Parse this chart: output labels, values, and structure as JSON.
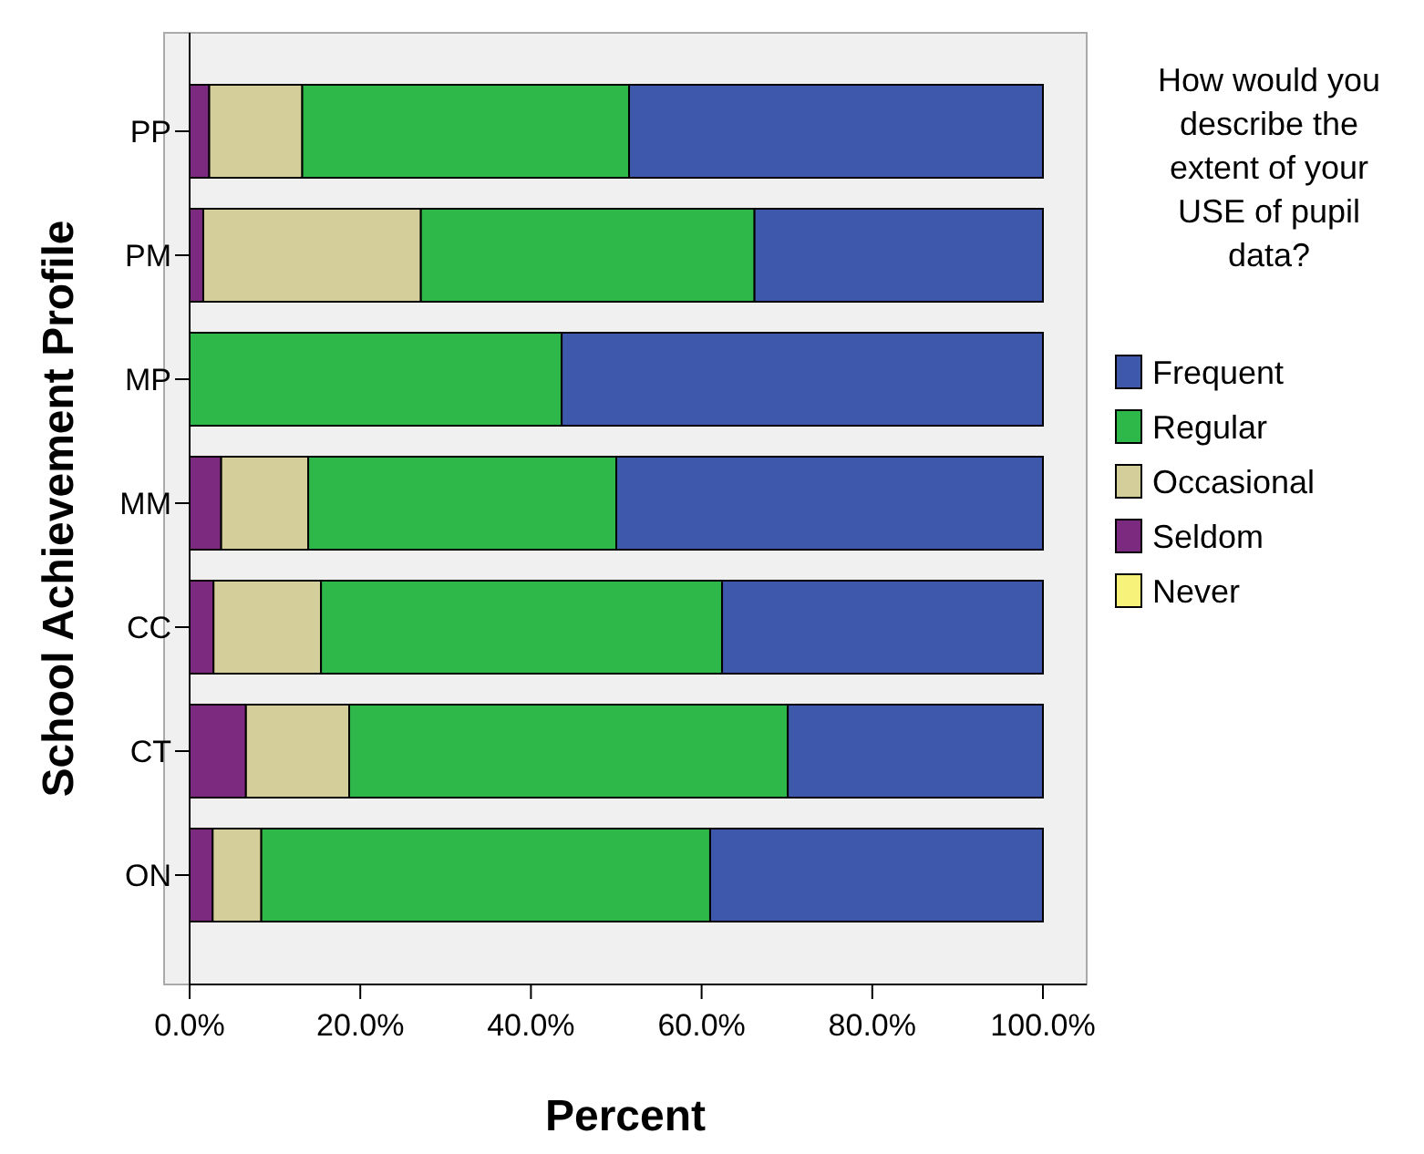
{
  "chart_data": {
    "type": "bar",
    "orientation": "horizontal",
    "stacked": true,
    "xlabel": "Percent",
    "ylabel": "School Achievement Profile",
    "legend_title": "How would you describe the extent of your USE of pupil data?",
    "legend": "right",
    "categories": [
      "PP",
      "PM",
      "MP",
      "MM",
      "CC",
      "CT",
      "ON"
    ],
    "xlim": [
      0,
      100
    ],
    "xticks": [
      {
        "value": 0,
        "label": "0.0%"
      },
      {
        "value": 20,
        "label": "20.0%"
      },
      {
        "value": 40,
        "label": "40.0%"
      },
      {
        "value": 60,
        "label": "60.0%"
      },
      {
        "value": 80,
        "label": "80.0%"
      },
      {
        "value": 100,
        "label": "100.0%"
      }
    ],
    "series": [
      {
        "name": "Never",
        "color": "#f7f27a",
        "values": [
          0,
          0,
          0,
          0,
          0,
          0,
          0
        ]
      },
      {
        "name": "Seldom",
        "color": "#7b2a7f",
        "values": [
          2.3,
          1.6,
          0,
          3.7,
          2.8,
          6.6,
          2.7
        ]
      },
      {
        "name": "Occasional",
        "color": "#d4cf9a",
        "values": [
          10.9,
          25.5,
          0,
          10.2,
          12.6,
          12.1,
          5.7
        ]
      },
      {
        "name": "Regular",
        "color": "#2eb84a",
        "values": [
          38.3,
          39.1,
          43.6,
          36.1,
          47.0,
          51.4,
          52.6
        ]
      },
      {
        "name": "Frequent",
        "color": "#3e58ac",
        "values": [
          48.5,
          33.8,
          56.4,
          50.0,
          37.6,
          29.9,
          39.0
        ]
      }
    ]
  }
}
